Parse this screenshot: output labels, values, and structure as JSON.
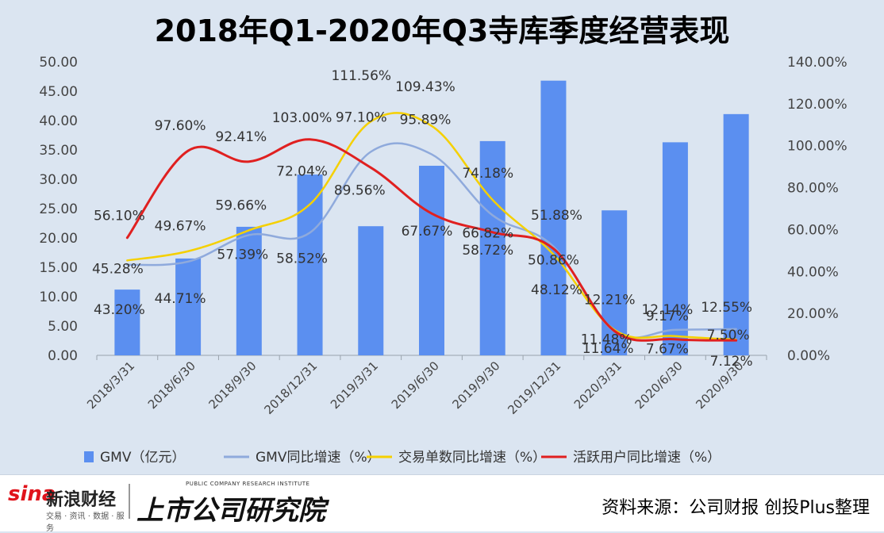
{
  "title": "2018年Q1-2020年Q3寺库季度经营表现",
  "chart_data": {
    "type": "bar",
    "categories": [
      "2018/3/31",
      "2018/6/30",
      "2018/9/30",
      "2018/12/31",
      "2019/3/31",
      "2019/6/30",
      "2019/9/30",
      "2019/12/31",
      "2020/3/31",
      "2020/6/30",
      "2020/9/30"
    ],
    "left_axis": {
      "ylim": [
        0,
        50
      ],
      "ticks": [
        "0.00",
        "5.00",
        "10.00",
        "15.00",
        "20.00",
        "25.00",
        "30.00",
        "35.00",
        "40.00",
        "45.00",
        "50.00"
      ]
    },
    "right_axis": {
      "ylim": [
        0,
        140
      ],
      "ticks": [
        "0.00%",
        "20.00%",
        "40.00%",
        "60.00%",
        "80.00%",
        "100.00%",
        "120.00%",
        "140.00%"
      ]
    },
    "bar_series": {
      "name": "GMV（亿元）",
      "color": "#5b8ff0",
      "values": [
        11.2,
        16.5,
        21.9,
        30.8,
        22.0,
        32.3,
        36.5,
        46.8,
        24.7,
        36.3,
        41.1
      ]
    },
    "line_series": [
      {
        "name": "GMV同比增速（%）",
        "color": "#8faadc",
        "values": [
          43.2,
          44.71,
          57.39,
          58.52,
          97.1,
          95.89,
          66.82,
          51.88,
          11.48,
          12.14,
          12.55
        ],
        "labels": [
          "43.20%",
          "44.71%",
          "57.39%",
          "58.52%",
          "97.10%",
          "95.89%",
          "66.82%",
          "51.88%",
          "11.48%",
          "12.14%",
          "12.55%"
        ]
      },
      {
        "name": "交易单数同比增速（%）",
        "color": "#f5d000",
        "values": [
          45.28,
          49.67,
          59.66,
          72.04,
          111.56,
          109.43,
          74.18,
          48.12,
          12.21,
          9.17,
          7.5
        ],
        "labels": [
          "45.28%",
          "49.67%",
          "59.66%",
          "72.04%",
          "111.56%",
          "109.43%",
          "74.18%",
          "48.12%",
          "12.21%",
          "9.17%",
          "7.50%"
        ]
      },
      {
        "name": "活跃用户同比增速（%）",
        "color": "#e02020",
        "values": [
          56.1,
          97.6,
          92.41,
          103.0,
          89.56,
          67.67,
          58.72,
          50.86,
          11.64,
          7.67,
          7.12
        ],
        "labels": [
          "56.10%",
          "97.60%",
          "92.41%",
          "103.00%",
          "89.56%",
          "67.67%",
          "58.72%",
          "50.86%",
          "11.64%",
          "7.67%",
          "7.12%"
        ]
      }
    ]
  },
  "footer": {
    "sina_word": "sina",
    "sina_cn": "新浪财经",
    "sina_sub": "交易 · 资讯 · 数据 · 服务",
    "institute_en": "PUBLIC COMPANY RESEARCH INSTITUTE",
    "institute_cn": "上市公司研究院",
    "source": "资料来源：公司财报 创投Plus整理"
  }
}
